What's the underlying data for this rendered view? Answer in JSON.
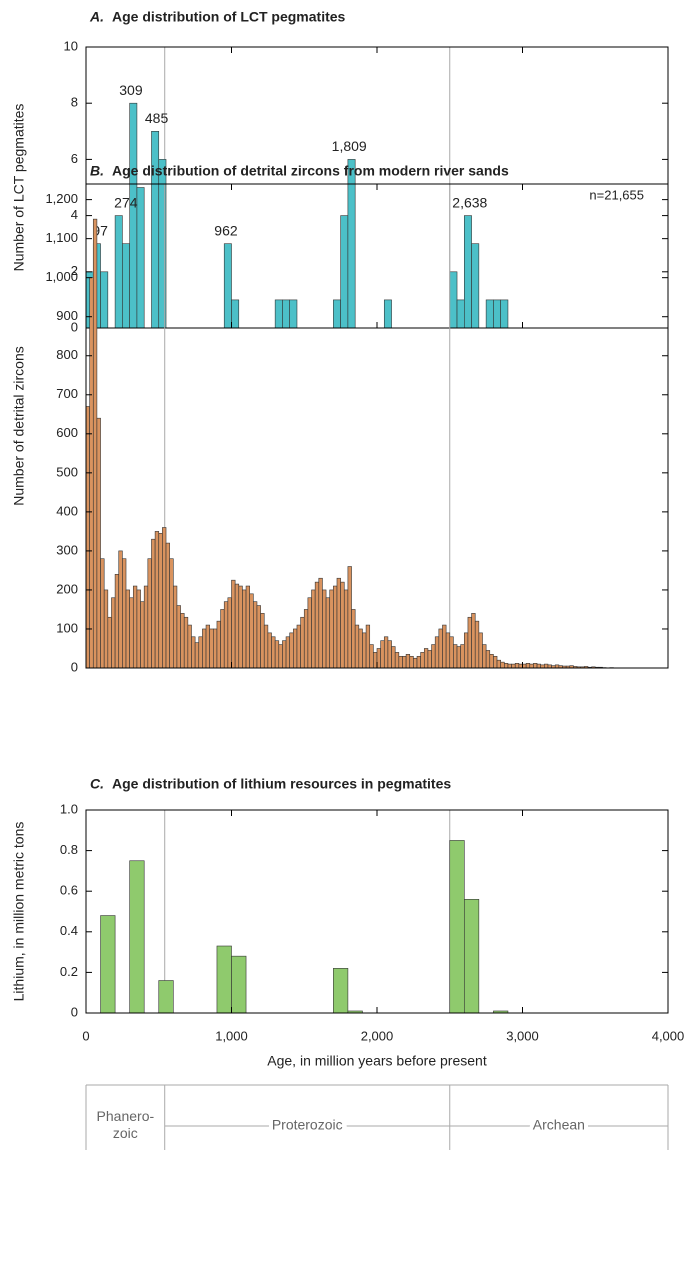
{
  "chart_data": [
    {
      "type": "histogram",
      "panel": "A.",
      "title": "Age distribution of LCT pegmatites",
      "ylabel": "Number of LCT pegmatites",
      "color": "#4cc0c8",
      "bins": [
        0,
        50,
        100,
        150,
        200,
        250,
        300,
        350,
        400,
        450,
        500,
        550,
        600,
        650,
        700,
        750,
        800,
        850,
        900,
        950,
        1000,
        1050,
        1100,
        1150,
        1200,
        1250,
        1300,
        1350,
        1400,
        1450,
        1500,
        1550,
        1600,
        1650,
        1700,
        1750,
        1800,
        1850,
        1900,
        1950,
        2000,
        2050,
        2100,
        2150,
        2200,
        2250,
        2300,
        2350,
        2400,
        2450,
        2500,
        2550,
        2600,
        2650,
        2700,
        2750,
        2800,
        2850,
        2900,
        2950,
        3000,
        3050,
        3100,
        3150,
        3200,
        3250,
        3300,
        3350,
        3400,
        3450,
        3500,
        3550,
        3600,
        3650,
        3700,
        3750,
        3800,
        3850,
        3900,
        3950,
        4000
      ],
      "values": [
        2,
        3,
        2,
        0,
        4,
        3,
        8,
        5,
        0,
        7,
        6,
        0,
        0,
        0,
        0,
        0,
        0,
        0,
        0,
        3,
        1,
        0,
        0,
        0,
        0,
        0,
        1,
        1,
        1,
        0,
        0,
        0,
        0,
        0,
        1,
        4,
        6,
        0,
        0,
        0,
        0,
        1,
        0,
        0,
        0,
        0,
        0,
        0,
        0,
        0,
        2,
        1,
        4,
        3,
        0,
        1,
        1,
        1,
        0,
        0,
        0,
        0,
        0,
        0,
        0,
        0,
        0,
        0,
        0,
        0,
        0,
        0,
        0,
        0,
        0,
        0,
        0,
        0,
        0,
        0
      ],
      "annotations": [
        {
          "value": 97,
          "label": "97"
        },
        {
          "value": 274,
          "label": "274"
        },
        {
          "value": 309,
          "label": "309"
        },
        {
          "value": 485,
          "label": "485"
        },
        {
          "value": 962,
          "label": "962"
        },
        {
          "value": 1809,
          "label": "1,809"
        },
        {
          "value": 2638,
          "label": "2,638"
        }
      ],
      "xlim": [
        0,
        4000
      ],
      "ylim": [
        0,
        10
      ],
      "yticks": [
        0,
        2,
        4,
        6,
        8,
        10
      ]
    },
    {
      "type": "histogram",
      "panel": "B.",
      "title": "Age distribution of detrital zircons from modern river sands",
      "ylabel": "Number of detrital zircons",
      "color": "#d9935f",
      "note": "n=21,655",
      "bins": [
        0,
        25,
        50,
        75,
        100,
        125,
        150,
        175,
        200,
        225,
        250,
        275,
        300,
        325,
        350,
        375,
        400,
        425,
        450,
        475,
        500,
        525,
        550,
        575,
        600,
        625,
        650,
        675,
        700,
        725,
        750,
        775,
        800,
        825,
        850,
        875,
        900,
        925,
        950,
        975,
        1000,
        1025,
        1050,
        1075,
        1100,
        1125,
        1150,
        1175,
        1200,
        1225,
        1250,
        1275,
        1300,
        1325,
        1350,
        1375,
        1400,
        1425,
        1450,
        1475,
        1500,
        1525,
        1550,
        1575,
        1600,
        1625,
        1650,
        1675,
        1700,
        1725,
        1750,
        1775,
        1800,
        1825,
        1850,
        1875,
        1900,
        1925,
        1950,
        1975,
        2000,
        2025,
        2050,
        2075,
        2100,
        2125,
        2150,
        2175,
        2200,
        2225,
        2250,
        2275,
        2300,
        2325,
        2350,
        2375,
        2400,
        2425,
        2450,
        2475,
        2500,
        2525,
        2550,
        2575,
        2600,
        2625,
        2650,
        2675,
        2700,
        2725,
        2750,
        2775,
        2800,
        2825,
        2850,
        2875,
        2900,
        2925,
        2950,
        2975,
        3000,
        3025,
        3050,
        3075,
        3100,
        3125,
        3150,
        3175,
        3200,
        3225,
        3250,
        3275,
        3300,
        3325,
        3350,
        3375,
        3400,
        3425,
        3450,
        3475,
        3500,
        3525,
        3550,
        3575,
        3600,
        3625,
        3650,
        3675,
        3700,
        3725,
        3750,
        3775,
        3800,
        3825,
        3850,
        3875,
        3900,
        3925,
        3950,
        3975,
        4000
      ],
      "values": [
        670,
        1000,
        1150,
        640,
        280,
        200,
        130,
        180,
        240,
        300,
        280,
        200,
        180,
        210,
        200,
        170,
        210,
        280,
        330,
        350,
        345,
        360,
        320,
        280,
        210,
        160,
        140,
        130,
        110,
        80,
        65,
        80,
        100,
        110,
        100,
        100,
        120,
        150,
        170,
        180,
        225,
        215,
        210,
        200,
        210,
        190,
        170,
        160,
        140,
        110,
        90,
        80,
        70,
        60,
        70,
        80,
        90,
        100,
        110,
        130,
        150,
        180,
        200,
        220,
        230,
        200,
        180,
        200,
        210,
        230,
        220,
        200,
        260,
        150,
        110,
        100,
        90,
        110,
        60,
        40,
        50,
        70,
        80,
        70,
        55,
        40,
        30,
        30,
        35,
        30,
        25,
        30,
        40,
        50,
        45,
        60,
        80,
        100,
        110,
        90,
        80,
        60,
        55,
        60,
        90,
        130,
        140,
        120,
        90,
        60,
        45,
        35,
        30,
        20,
        15,
        12,
        10,
        10,
        12,
        10,
        10,
        12,
        10,
        12,
        10,
        8,
        10,
        8,
        6,
        8,
        6,
        5,
        5,
        6,
        4,
        3,
        3,
        4,
        2,
        3,
        2,
        2,
        1,
        0,
        1,
        0,
        0,
        0,
        0,
        0,
        0,
        0,
        0,
        0,
        0,
        0,
        0,
        0,
        0,
        0
      ],
      "xlim": [
        0,
        4000
      ],
      "ylim": [
        0,
        1240
      ],
      "yticks": [
        0,
        100,
        200,
        300,
        400,
        500,
        600,
        700,
        800,
        900,
        {
          "value": 1000,
          "label": "1,000"
        },
        {
          "value": 1100,
          "label": "1,100"
        },
        {
          "value": 1200,
          "label": "1,200"
        }
      ]
    },
    {
      "type": "histogram",
      "panel": "C.",
      "title": "Age distribution of lithium resources in pegmatites",
      "ylabel": "Lithium, in million metric tons",
      "xlabel": "Age, in million years before present",
      "color": "#8fca6d",
      "bins": [
        0,
        100,
        200,
        300,
        400,
        500,
        600,
        700,
        800,
        900,
        1000,
        1100,
        1200,
        1300,
        1400,
        1500,
        1600,
        1700,
        1800,
        1900,
        2000,
        2100,
        2200,
        2300,
        2400,
        2500,
        2600,
        2700,
        2800,
        2900,
        3000,
        3100,
        3200,
        3300,
        3400,
        3500,
        3600,
        3700,
        3800,
        3900,
        4000
      ],
      "values": [
        0,
        0.48,
        0,
        0.75,
        0,
        0.16,
        0,
        0,
        0,
        0.33,
        0.28,
        0,
        0,
        0,
        0,
        0,
        0,
        0.22,
        0.01,
        0,
        0,
        0,
        0,
        0,
        0,
        0.85,
        0.56,
        0,
        0.01,
        0,
        0,
        0,
        0,
        0,
        0,
        0,
        0,
        0,
        0,
        0
      ],
      "xlim": [
        0,
        4000
      ],
      "ylim": [
        0,
        1.0
      ],
      "yticks": [
        0,
        0.2,
        0.4,
        0.6,
        0.8,
        {
          "value": 1.0,
          "label": "1.0"
        }
      ],
      "xticks": [
        0,
        {
          "value": 1000,
          "label": "1,000"
        },
        {
          "value": 2000,
          "label": "2,000"
        },
        {
          "value": 3000,
          "label": "3,000"
        },
        {
          "value": 4000,
          "label": "4,000"
        }
      ],
      "era_boundaries": [
        541,
        2500
      ],
      "eras": [
        {
          "range": [
            0,
            541
          ],
          "label": [
            "Phanero-",
            "zoic"
          ]
        },
        {
          "range": [
            541,
            2500
          ],
          "label": [
            "Proterozoic"
          ]
        },
        {
          "range": [
            2500,
            4000
          ],
          "label": [
            "Archean"
          ]
        }
      ]
    }
  ]
}
